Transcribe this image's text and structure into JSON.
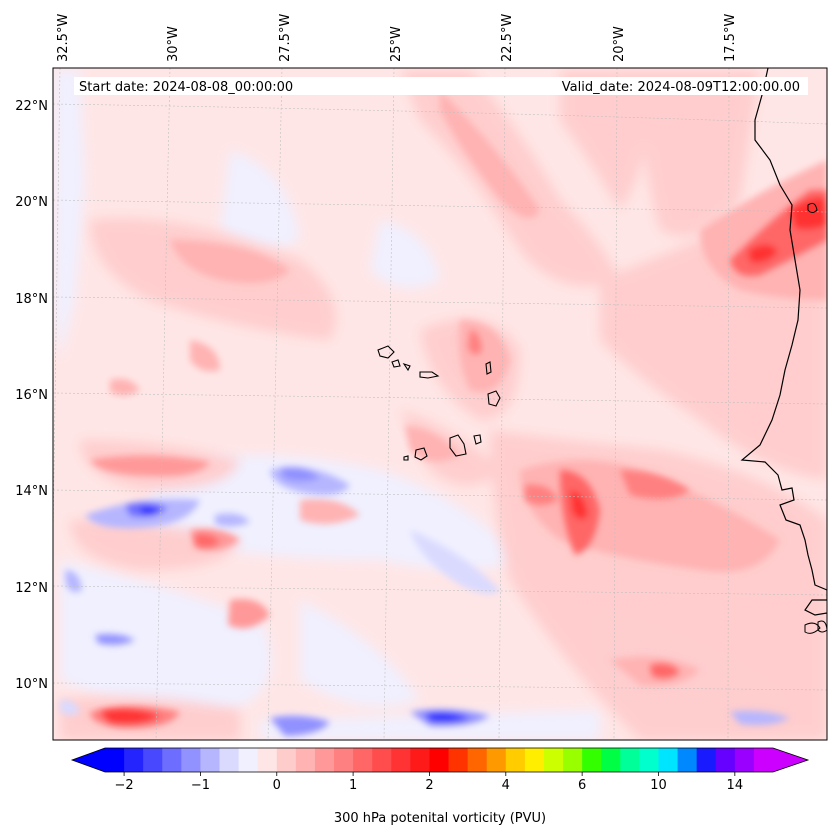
{
  "header": {
    "start_date": "Start date: 2024-08-08_00:00:00",
    "valid_date": "Valid_date: 2024-08-09T12:00:00.00"
  },
  "map": {
    "variable": "300 hPa potenital vorticity (PVU)",
    "lon_ticks": [
      "32.5°W",
      "30°W",
      "27.5°W",
      "25°W",
      "22.5°W",
      "20°W",
      "17.5°W"
    ],
    "lat_ticks": [
      "22°N",
      "20°N",
      "18°N",
      "16°N",
      "14°N",
      "12°N",
      "10°N"
    ],
    "lon_range_deg": [
      -32.5,
      -15.2
    ],
    "lat_range_deg": [
      8.8,
      22.8
    ],
    "gridlines": true,
    "background_value_pvu": 0.1
  },
  "colorbar": {
    "label": "300 hPa potenital vorticity (PVU)",
    "tick_labels": [
      "−2",
      "−1",
      "0",
      "1",
      "2",
      "4",
      "6",
      "10",
      "14"
    ],
    "extend": "both",
    "colors": [
      "#0000ff",
      "#2424ff",
      "#4848ff",
      "#6d6dff",
      "#9191ff",
      "#b6b6ff",
      "#dadaff",
      "#f0f0ff",
      "#ffe6e6",
      "#ffcccc",
      "#ffb3b3",
      "#ff9999",
      "#ff8080",
      "#ff6666",
      "#ff4d4d",
      "#ff3333",
      "#ff1a1a",
      "#ff0000",
      "#ff3300",
      "#ff6600",
      "#ff9900",
      "#ffcc00",
      "#ffee00",
      "#ccff00",
      "#99ff00",
      "#33ff00",
      "#00ff44",
      "#00ff99",
      "#00ffcc",
      "#00e5ff",
      "#0088ff",
      "#1a1aff",
      "#6600ff",
      "#9900ff",
      "#cc00ff"
    ],
    "under_color": "#0000ff",
    "over_color": "#cc00ff"
  },
  "features": {
    "pv_maxima": [
      {
        "lon": -15.7,
        "lat": 19.6,
        "pvu": 1.8
      },
      {
        "lon": -17.0,
        "lat": 19.0,
        "pvu": 1.5
      },
      {
        "lon": -20.7,
        "lat": 13.7,
        "pvu": 1.4
      },
      {
        "lon": -20.3,
        "lat": 12.9,
        "pvu": 1.2
      },
      {
        "lon": -31.0,
        "lat": 9.3,
        "pvu": 1.2
      },
      {
        "lon": -29.2,
        "lat": 12.9,
        "pvu": 1.0
      },
      {
        "lon": -28.0,
        "lat": 11.3,
        "pvu": 0.9
      }
    ],
    "pv_minima": [
      {
        "lon": -30.4,
        "lat": 13.6,
        "pvu": -1.2
      },
      {
        "lon": -23.6,
        "lat": 9.2,
        "pvu": -1.3
      },
      {
        "lon": -26.5,
        "lat": 14.3,
        "pvu": -0.8
      },
      {
        "lon": -26.5,
        "lat": 9.4,
        "pvu": -0.9
      },
      {
        "lon": -30.8,
        "lat": 10.8,
        "pvu": -0.7
      },
      {
        "lon": -18.0,
        "lat": 9.4,
        "pvu": -0.5
      }
    ]
  }
}
